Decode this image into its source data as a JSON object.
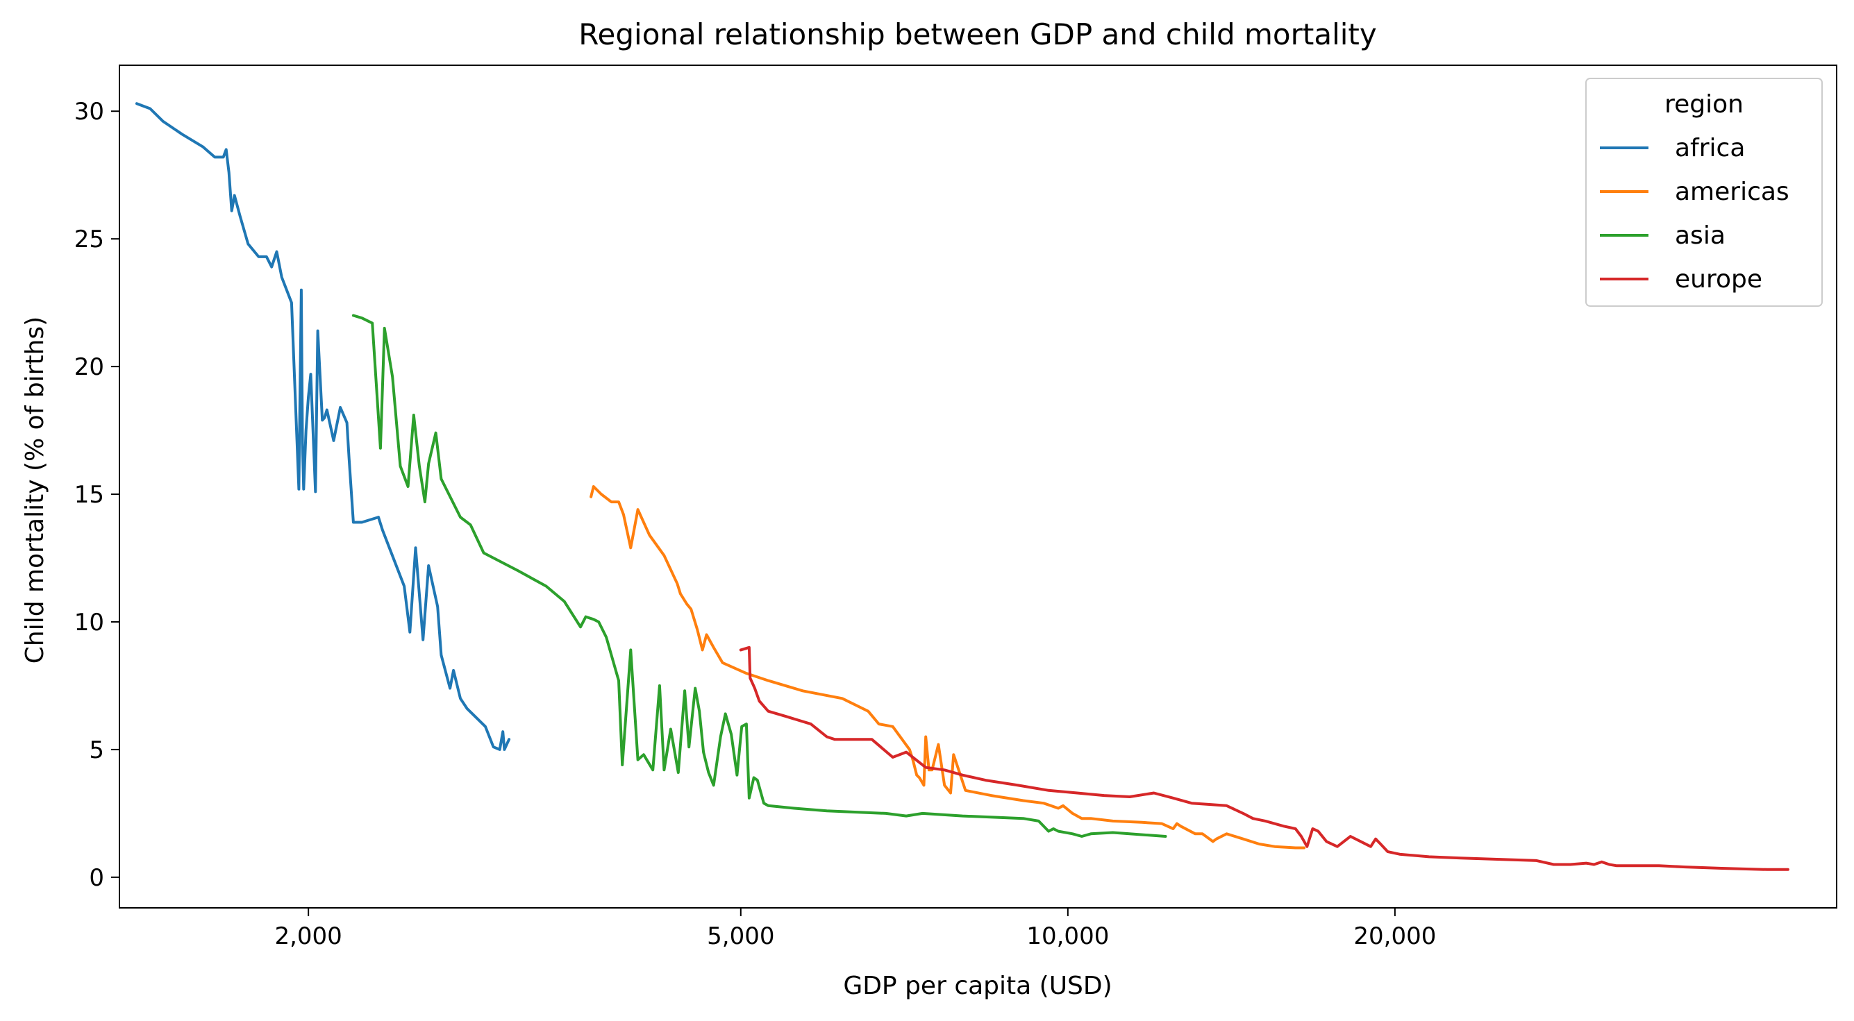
{
  "chart_data": {
    "type": "line",
    "title": "Regional relationship between GDP and child mortality",
    "xlabel": "GDP per capita (USD)",
    "ylabel": "Child mortality (% of births)",
    "xscale": "log",
    "xlim": [
      1340,
      51000
    ],
    "ylim": [
      -1.2,
      31.8
    ],
    "xticks": [
      2000,
      5000,
      10000,
      20000
    ],
    "xtick_labels": [
      "2,000",
      "5,000",
      "10,000",
      "20,000"
    ],
    "yticks": [
      0,
      5,
      10,
      15,
      20,
      25,
      30
    ],
    "ytick_labels": [
      "0",
      "5",
      "10",
      "15",
      "20",
      "25",
      "30"
    ],
    "grid": false,
    "legend": {
      "title": "region",
      "placement": "upper right"
    },
    "series": [
      {
        "name": "africa",
        "color": "#1f77b4",
        "x": [
          1390,
          1430,
          1470,
          1530,
          1600,
          1640,
          1670,
          1680,
          1690,
          1700,
          1710,
          1730,
          1760,
          1800,
          1830,
          1850,
          1870,
          1890,
          1930,
          1960,
          1970,
          1975,
          1980,
          1990,
          2000,
          2010,
          2030,
          2040,
          2060,
          2070,
          2080,
          2110,
          2140,
          2170,
          2180,
          2200,
          2240,
          2320,
          2340,
          2450,
          2480,
          2510,
          2550,
          2580,
          2630,
          2650,
          2700,
          2720,
          2760,
          2800,
          2910,
          2960,
          3000,
          3020,
          3030,
          3060
        ],
        "y": [
          30.3,
          30.1,
          29.6,
          29.1,
          28.6,
          28.2,
          28.2,
          28.5,
          27.6,
          26.1,
          26.7,
          25.9,
          24.8,
          24.3,
          24.3,
          23.9,
          24.5,
          23.5,
          22.5,
          15.2,
          23.0,
          17.0,
          15.2,
          17.5,
          18.8,
          19.7,
          15.1,
          21.4,
          17.9,
          18.0,
          18.3,
          17.1,
          18.4,
          17.8,
          16.4,
          13.9,
          13.9,
          14.1,
          13.6,
          11.4,
          9.6,
          12.9,
          9.3,
          12.2,
          10.6,
          8.7,
          7.4,
          8.1,
          7.0,
          6.6,
          5.9,
          5.1,
          5.0,
          5.7,
          5.0,
          5.4
        ]
      },
      {
        "name": "americas",
        "color": "#ff7f0e",
        "x": [
          3640,
          3660,
          3720,
          3800,
          3860,
          3900,
          3960,
          4020,
          4120,
          4250,
          4370,
          4400,
          4460,
          4500,
          4560,
          4610,
          4650,
          4720,
          4810,
          5050,
          5300,
          5700,
          6200,
          6550,
          6700,
          6900,
          7150,
          7200,
          7260,
          7300,
          7370,
          7400,
          7450,
          7500,
          7600,
          7700,
          7800,
          7850,
          8050,
          8500,
          9100,
          9500,
          9800,
          9900,
          10100,
          10300,
          10500,
          11000,
          11700,
          12200,
          12500,
          12600,
          12700,
          13100,
          13300,
          13600,
          13700,
          14000,
          14500,
          15000,
          15500,
          16200,
          16500
        ],
        "y": [
          14.9,
          15.3,
          15.0,
          14.7,
          14.7,
          14.2,
          12.9,
          14.4,
          13.4,
          12.6,
          11.5,
          11.1,
          10.7,
          10.5,
          9.7,
          8.9,
          9.5,
          9.0,
          8.4,
          8.0,
          7.7,
          7.3,
          7.0,
          6.5,
          6.0,
          5.9,
          5.0,
          4.6,
          4.0,
          3.9,
          3.6,
          5.5,
          4.2,
          4.2,
          5.2,
          3.6,
          3.3,
          4.8,
          3.4,
          3.2,
          3.0,
          2.9,
          2.7,
          2.8,
          2.5,
          2.3,
          2.3,
          2.2,
          2.15,
          2.1,
          1.9,
          2.1,
          2.0,
          1.7,
          1.7,
          1.4,
          1.5,
          1.7,
          1.5,
          1.3,
          1.2,
          1.15,
          1.15
        ]
      },
      {
        "name": "asia",
        "color": "#2ca02c",
        "x": [
          2200,
          2240,
          2290,
          2330,
          2350,
          2390,
          2430,
          2470,
          2500,
          2530,
          2560,
          2580,
          2620,
          2650,
          2760,
          2820,
          2900,
          3120,
          3310,
          3440,
          3500,
          3560,
          3600,
          3660,
          3700,
          3760,
          3860,
          3890,
          3960,
          4020,
          4070,
          4150,
          4210,
          4250,
          4310,
          4380,
          4440,
          4480,
          4540,
          4580,
          4620,
          4670,
          4720,
          4790,
          4840,
          4900,
          4960,
          5010,
          5060,
          5090,
          5140,
          5180,
          5250,
          5300,
          5600,
          6000,
          6800,
          7100,
          7350,
          8000,
          9100,
          9400,
          9600,
          9700,
          9800,
          10100,
          10300,
          10500,
          11000,
          12300
        ],
        "y": [
          22.0,
          21.9,
          21.7,
          16.8,
          21.5,
          19.6,
          16.1,
          15.3,
          18.1,
          16.1,
          14.7,
          16.2,
          17.4,
          15.6,
          14.1,
          13.8,
          12.7,
          12.0,
          11.4,
          10.8,
          10.3,
          9.8,
          10.2,
          10.1,
          10.0,
          9.4,
          7.7,
          4.4,
          8.9,
          4.6,
          4.8,
          4.2,
          7.5,
          4.2,
          5.8,
          4.1,
          7.3,
          5.1,
          7.4,
          6.5,
          4.9,
          4.1,
          3.6,
          5.5,
          6.4,
          5.6,
          4.0,
          5.9,
          6.0,
          3.1,
          3.9,
          3.8,
          2.9,
          2.8,
          2.7,
          2.6,
          2.5,
          2.4,
          2.5,
          2.4,
          2.3,
          2.2,
          1.8,
          1.9,
          1.8,
          1.7,
          1.6,
          1.7,
          1.75,
          1.6
        ]
      },
      {
        "name": "europe",
        "color": "#d62728",
        "x": [
          5000,
          5090,
          5100,
          5150,
          5200,
          5300,
          5500,
          5800,
          6000,
          6100,
          6300,
          6600,
          6900,
          7100,
          7400,
          7700,
          8000,
          8400,
          9000,
          9600,
          10200,
          10800,
          11400,
          12000,
          12500,
          13000,
          13500,
          14000,
          14500,
          14800,
          15200,
          15800,
          16200,
          16400,
          16600,
          16800,
          17000,
          17300,
          17700,
          18200,
          18600,
          19000,
          19200,
          19400,
          19700,
          20200,
          21500,
          23000,
          25000,
          27000,
          28000,
          28400,
          29000,
          30000,
          30500,
          31000,
          31500,
          32000,
          33000,
          35000,
          37000,
          40000,
          44000,
          46000
        ],
        "y": [
          8.9,
          9.0,
          7.8,
          7.4,
          6.9,
          6.5,
          6.3,
          6.0,
          5.5,
          5.4,
          5.4,
          5.4,
          4.7,
          4.9,
          4.3,
          4.2,
          4.0,
          3.8,
          3.6,
          3.4,
          3.3,
          3.2,
          3.15,
          3.3,
          3.1,
          2.9,
          2.85,
          2.8,
          2.5,
          2.3,
          2.2,
          2.0,
          1.9,
          1.6,
          1.2,
          1.9,
          1.8,
          1.4,
          1.2,
          1.6,
          1.4,
          1.2,
          1.5,
          1.3,
          1.0,
          0.9,
          0.8,
          0.75,
          0.7,
          0.65,
          0.5,
          0.5,
          0.5,
          0.55,
          0.5,
          0.6,
          0.5,
          0.45,
          0.45,
          0.45,
          0.4,
          0.35,
          0.3,
          0.3
        ]
      }
    ]
  }
}
